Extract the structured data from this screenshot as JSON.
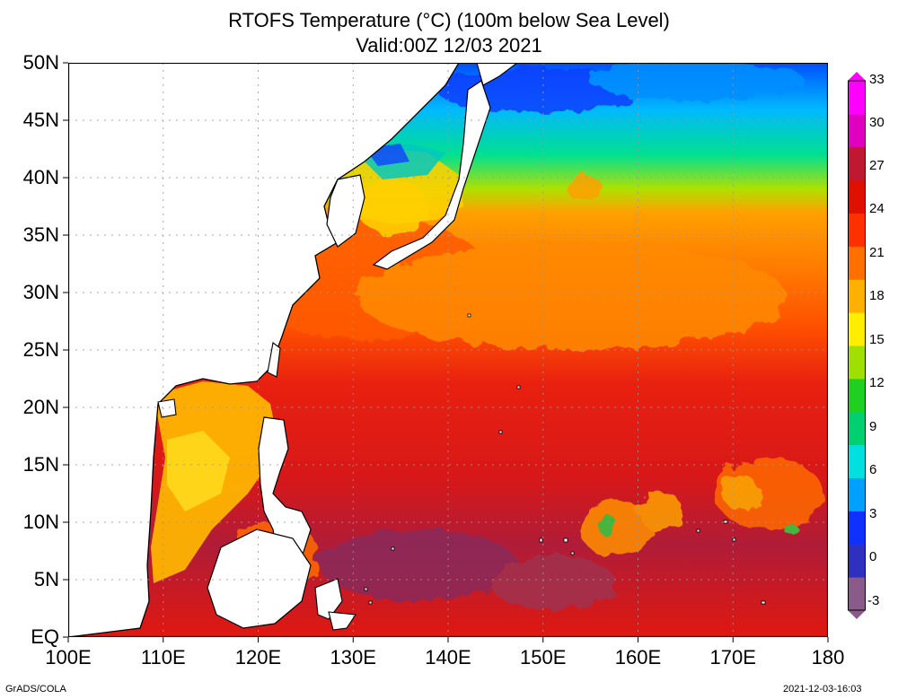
{
  "title": {
    "line1": "RTOFS Temperature (°C) (100m below Sea Level)",
    "line2": "Valid:00Z 12/03 2021"
  },
  "axes": {
    "lat_labels": [
      "50N",
      "45N",
      "40N",
      "35N",
      "30N",
      "25N",
      "20N",
      "15N",
      "10N",
      "5N",
      "EQ"
    ],
    "lat_values": [
      50,
      45,
      40,
      35,
      30,
      25,
      20,
      15,
      10,
      5,
      0
    ],
    "lon_labels": [
      "100E",
      "110E",
      "120E",
      "130E",
      "140E",
      "150E",
      "160E",
      "170E",
      "180"
    ],
    "lon_values": [
      100,
      110,
      120,
      130,
      140,
      150,
      160,
      170,
      180
    ]
  },
  "extent": {
    "lon_min": 100,
    "lon_max": 180,
    "lat_min": 0,
    "lat_max": 50
  },
  "colorbar": {
    "labels": [
      "33",
      "30",
      "27",
      "24",
      "21",
      "18",
      "15",
      "12",
      "9",
      "6",
      "3",
      "0",
      "-3"
    ],
    "values": [
      33,
      30,
      27,
      24,
      21,
      18,
      15,
      12,
      9,
      6,
      3,
      0,
      -3
    ],
    "colors": [
      "#8a5a8a",
      "#3030c0",
      "#1030ff",
      "#00a0ff",
      "#00e0e0",
      "#00d070",
      "#20d020",
      "#a0e000",
      "#ffee00",
      "#ffb000",
      "#ff7000",
      "#ff3000",
      "#e01000",
      "#c01830",
      "#e000c0",
      "#ff00ff"
    ]
  },
  "footer": {
    "left": "GrADS/COLA",
    "right": "2021-12-03-16:03"
  }
}
